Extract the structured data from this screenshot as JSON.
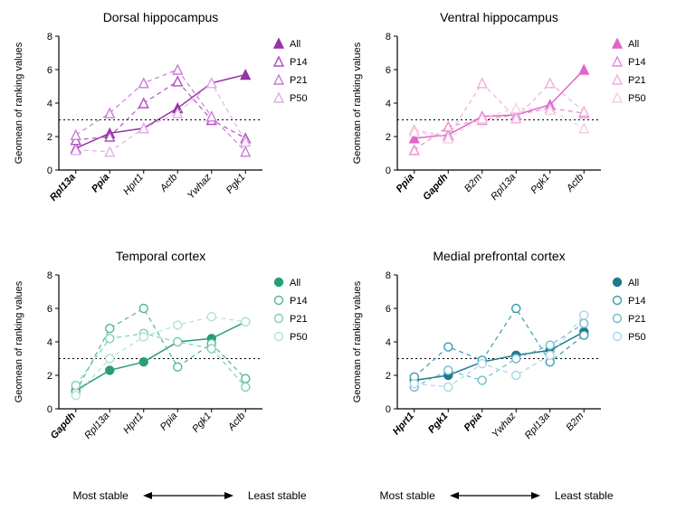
{
  "global": {
    "ylim": [
      0,
      8
    ],
    "yticks": [
      0,
      2,
      4,
      6,
      8
    ],
    "reference_y": 3,
    "ylabel": "Geomean of ranking values",
    "background_color": "#ffffff",
    "axis_color": "#000000",
    "legend_series": [
      "All",
      "P14",
      "P21",
      "P50"
    ],
    "stability_left_label": "Most stable",
    "stability_right_label": "Least stable",
    "grid_color": "#000000",
    "title_fontsize": 14,
    "label_fontsize": 11
  },
  "marker_shapes": {
    "dorsal": "triangle",
    "ventral": "triangle",
    "temporal": "circle",
    "mpfc": "circle"
  },
  "panels": {
    "dorsal": {
      "title": "Dorsal hippocampus",
      "categories": [
        "Rpl13a",
        "Ppia",
        "Hprt1",
        "Actb",
        "Ywhaz",
        "Pgk1"
      ],
      "bold_categories": [
        "Rpl13a",
        "Ppia"
      ],
      "colors": {
        "All": "#9334a3",
        "P14": "#b14fc2",
        "P21": "#c97dd5",
        "P50": "#e1afe9"
      },
      "series": {
        "All": [
          1.3,
          2.2,
          2.5,
          3.7,
          5.2,
          5.7
        ],
        "P14": [
          1.8,
          2.0,
          4.0,
          5.3,
          3.0,
          1.9
        ],
        "P21": [
          2.1,
          3.4,
          5.2,
          6.0,
          3.2,
          1.1
        ],
        "P50": [
          1.2,
          1.1,
          2.5,
          3.4,
          5.2,
          1.7
        ]
      },
      "filled_series": [
        "All"
      ]
    },
    "ventral": {
      "title": "Ventral hippocampus",
      "categories": [
        "Ppia",
        "Gapdh",
        "B2m",
        "Rpl13a",
        "Pgk1",
        "Actb"
      ],
      "bold_categories": [
        "Ppia",
        "Gapdh"
      ],
      "colors": {
        "All": "#e067c5",
        "P14": "#e88ad2",
        "P21": "#efafde",
        "P50": "#f5cde9"
      },
      "series": {
        "All": [
          1.9,
          2.1,
          3.2,
          3.3,
          3.9,
          6.0
        ],
        "P14": [
          1.2,
          2.6,
          3.0,
          3.3,
          3.7,
          3.4
        ],
        "P21": [
          2.4,
          2.0,
          5.2,
          3.1,
          5.2,
          3.5
        ],
        "P50": [
          2.3,
          1.9,
          3.1,
          3.7,
          3.6,
          2.5
        ]
      },
      "filled_series": [
        "All"
      ]
    },
    "temporal": {
      "title": "Temporal cortex",
      "categories": [
        "Gapdh",
        "Rpl13a",
        "Hprt1",
        "Ppia",
        "Pgk1",
        "Actb"
      ],
      "bold_categories": [
        "Gapdh"
      ],
      "colors": {
        "All": "#2a9d77",
        "P14": "#4fb893",
        "P21": "#7fd0b3",
        "P50": "#b1e4d2"
      },
      "series": {
        "All": [
          1.1,
          2.3,
          2.8,
          4.0,
          4.2,
          5.2
        ],
        "P14": [
          1.0,
          4.8,
          6.0,
          2.5,
          3.9,
          1.8
        ],
        "P21": [
          1.4,
          4.2,
          4.5,
          4.0,
          3.6,
          1.3
        ],
        "P50": [
          0.8,
          3.0,
          4.3,
          5.0,
          5.5,
          5.2
        ]
      },
      "filled_series": [
        "All"
      ]
    },
    "mpfc": {
      "title": "Medial prefrontal cortex",
      "categories": [
        "Hprt1",
        "Pgk1",
        "Ppia",
        "Ywhaz",
        "Rpl13a",
        "B2m"
      ],
      "bold_categories": [
        "Hprt1",
        "Pgk1",
        "Ppia"
      ],
      "colors": {
        "All": "#1f7a8c",
        "P14": "#3a9bb0",
        "P21": "#6fbbd0",
        "P50": "#a9d6e5"
      },
      "series": {
        "All": [
          1.7,
          2.0,
          2.8,
          3.2,
          3.5,
          4.6
        ],
        "P14": [
          1.9,
          3.7,
          2.9,
          6.0,
          2.8,
          4.4
        ],
        "P21": [
          1.3,
          2.3,
          1.7,
          3.0,
          3.8,
          5.1
        ],
        "P50": [
          1.5,
          1.3,
          2.7,
          2.0,
          3.2,
          5.6
        ]
      },
      "filled_series": [
        "All"
      ]
    }
  }
}
